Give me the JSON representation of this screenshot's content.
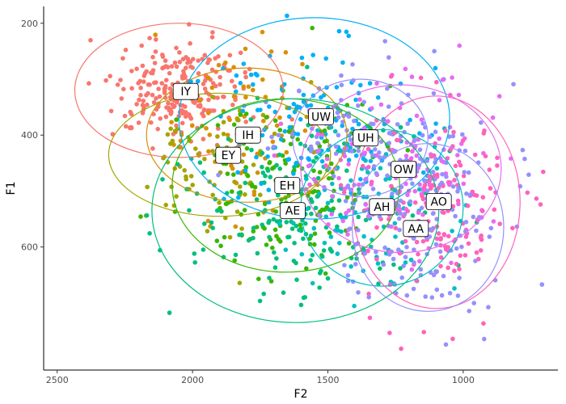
{
  "chart_data": {
    "type": "scatter",
    "title": "",
    "xlabel": "F2",
    "ylabel": "F1",
    "x_reversed": true,
    "y_reversed": true,
    "xlim": [
      2550,
      650
    ],
    "ylim": [
      170,
      820
    ],
    "x_ticks": [
      2500,
      2000,
      1500,
      1000
    ],
    "y_ticks": [
      200,
      400,
      600
    ],
    "grid": false,
    "legend": "none",
    "series": [
      {
        "label": "IY",
        "color": "#F8766D",
        "center": [
          2050,
          320
        ],
        "ellipse": {
          "rx": 385,
          "ry": 120
        },
        "count": 240,
        "spread": [
          120,
          45
        ]
      },
      {
        "label": "IH",
        "color": "#D89000",
        "center": [
          1800,
          400
        ],
        "ellipse": {
          "rx": 370,
          "ry": 120
        },
        "count": 80,
        "spread": [
          150,
          70
        ]
      },
      {
        "label": "EY",
        "color": "#A3A500",
        "center": [
          1900,
          435
        ],
        "ellipse": {
          "rx": 410,
          "ry": 110
        },
        "count": 80,
        "spread": [
          170,
          70
        ]
      },
      {
        "label": "EH",
        "color": "#39B600",
        "center": [
          1655,
          490
        ],
        "ellipse": {
          "rx": 420,
          "ry": 155
        },
        "count": 150,
        "spread": [
          170,
          70
        ]
      },
      {
        "label": "AE",
        "color": "#00BF7D",
        "center": [
          1620,
          535
        ],
        "ellipse": {
          "rx": 530,
          "ry": 200
        },
        "count": 170,
        "spread": [
          230,
          90
        ]
      },
      {
        "label": "AH",
        "color": "#00BFC4",
        "center": [
          1300,
          530
        ],
        "ellipse": {
          "rx": 300,
          "ry": 140
        },
        "count": 100,
        "spread": [
          160,
          75
        ]
      },
      {
        "label": "UW",
        "color": "#00B0F6",
        "center": [
          1550,
          370
        ],
        "ellipse": {
          "rx": 500,
          "ry": 180
        },
        "count": 130,
        "spread": [
          200,
          70
        ]
      },
      {
        "label": "UH",
        "color": "#9590FF",
        "center": [
          1380,
          405
        ],
        "ellipse": {
          "rx": 250,
          "ry": 105
        },
        "count": 120,
        "spread": [
          200,
          55
        ]
      },
      {
        "label": "OW",
        "color": "#E76BF3",
        "center": [
          1230,
          460
        ],
        "ellipse": {
          "rx": 370,
          "ry": 150
        },
        "count": 130,
        "spread": [
          170,
          75
        ]
      },
      {
        "label": "AO",
        "color": "#FF62BC",
        "center": [
          1100,
          520
        ],
        "ellipse": {
          "rx": 310,
          "ry": 190
        },
        "count": 160,
        "spread": [
          150,
          90
        ]
      },
      {
        "label": "AA",
        "color": "#9590FF",
        "center": [
          1130,
          565
        ],
        "ellipse": {
          "rx": 280,
          "ry": 150
        },
        "count": 150,
        "spread": [
          140,
          80
        ]
      }
    ],
    "label_positions": {
      "IY": [
        2025,
        322
      ],
      "IH": [
        1795,
        400
      ],
      "EY": [
        1868,
        436
      ],
      "UW": [
        1525,
        367
      ],
      "UH": [
        1360,
        405
      ],
      "EH": [
        1650,
        490
      ],
      "OW": [
        1220,
        461
      ],
      "AO": [
        1090,
        519
      ],
      "AH": [
        1300,
        528
      ],
      "AE": [
        1630,
        535
      ],
      "AA": [
        1175,
        567
      ]
    }
  }
}
